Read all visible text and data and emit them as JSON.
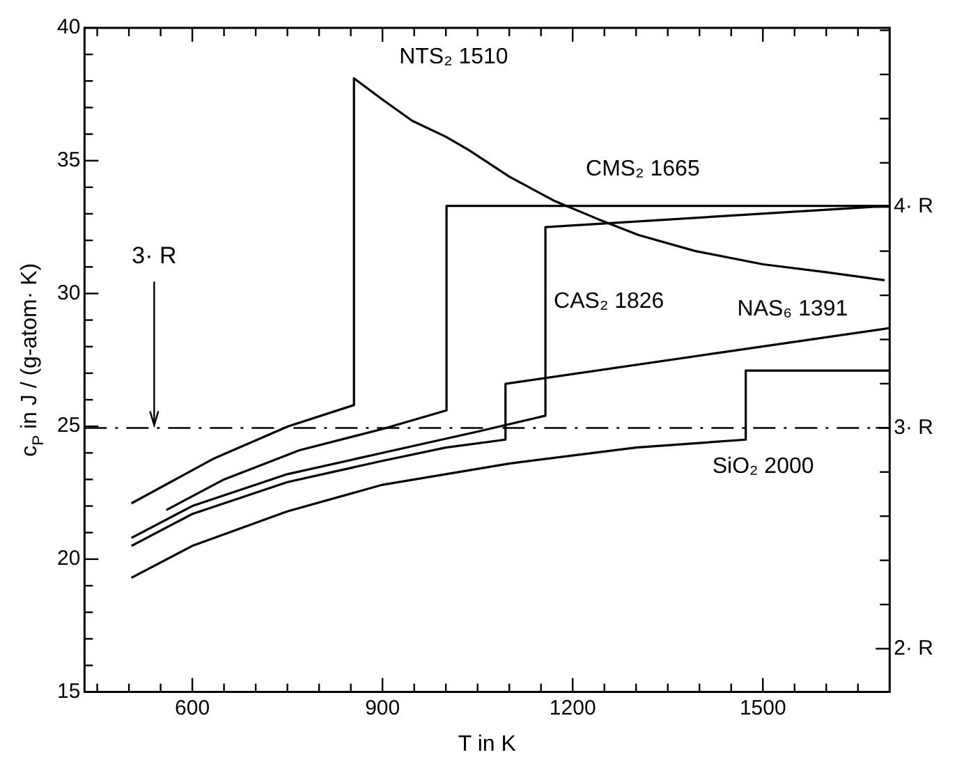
{
  "chart_data": {
    "type": "line",
    "xlabel": "T in K",
    "ylabel": "c$_{P}$ in J / (g-atom· K)",
    "marker": "none",
    "line_style": "solid",
    "grid": false,
    "xlim": [
      430,
      1700
    ],
    "xticks": [
      {
        "value": 450,
        "label": null
      },
      {
        "value": 500,
        "label": null
      },
      {
        "value": 550,
        "label": null
      },
      600,
      {
        "value": 650,
        "label": null
      },
      {
        "value": 700,
        "label": null
      },
      {
        "value": 750,
        "label": null
      },
      {
        "value": 800,
        "label": null
      },
      {
        "value": 850,
        "label": null
      },
      900,
      {
        "value": 950,
        "label": null
      },
      {
        "value": 1000,
        "label": null
      },
      {
        "value": 1050,
        "label": null
      },
      {
        "value": 1100,
        "label": null
      },
      {
        "value": 1150,
        "label": null
      },
      1200,
      {
        "value": 1250,
        "label": null
      },
      {
        "value": 1300,
        "label": null
      },
      {
        "value": 1350,
        "label": null
      },
      {
        "value": 1400,
        "label": null
      },
      {
        "value": 1450,
        "label": null
      },
      1500,
      {
        "value": 1550,
        "label": null
      },
      {
        "value": 1600,
        "label": null
      },
      {
        "value": 1650,
        "label": null
      }
    ],
    "ylim": [
      15,
      40
    ],
    "yticks": [
      15,
      {
        "value": 16,
        "label": null
      },
      {
        "value": 17,
        "label": null
      },
      {
        "value": 18,
        "label": null
      },
      {
        "value": 19,
        "label": null
      },
      20,
      {
        "value": 21,
        "label": null
      },
      {
        "value": 22,
        "label": null
      },
      {
        "value": 23,
        "label": null
      },
      {
        "value": 24,
        "label": null
      },
      25,
      {
        "value": 26,
        "label": null
      },
      {
        "value": 27,
        "label": null
      },
      {
        "value": 28,
        "label": null
      },
      {
        "value": 29,
        "label": null
      },
      30,
      {
        "value": 31,
        "label": null
      },
      {
        "value": 32,
        "label": null
      },
      {
        "value": 33,
        "label": null
      },
      {
        "value": 34,
        "label": null
      },
      35,
      {
        "value": 36,
        "label": null
      },
      {
        "value": 37,
        "label": null
      },
      {
        "value": 38,
        "label": null
      },
      {
        "value": 39,
        "label": null
      },
      40
    ],
    "y2lim": [
      1.804,
      4.811
    ],
    "y2ticks": [
      {
        "value": 2,
        "label": "2· R"
      },
      {
        "value": 2.2,
        "label": null
      },
      {
        "value": 2.4,
        "label": null
      },
      {
        "value": 2.6,
        "label": null
      },
      {
        "value": 2.8,
        "label": null
      },
      {
        "value": 3,
        "label": "3· R"
      },
      {
        "value": 3.2,
        "label": null
      },
      {
        "value": 3.4,
        "label": null
      },
      {
        "value": 3.6,
        "label": null
      },
      {
        "value": 3.8,
        "label": null
      },
      {
        "value": 4,
        "label": "4· R"
      },
      {
        "value": 4.2,
        "label": null
      },
      {
        "value": 4.4,
        "label": null
      },
      {
        "value": 4.6,
        "label": null
      },
      {
        "value": 4.8,
        "label": null
      }
    ],
    "ref_lines": [
      {
        "axis": "y",
        "value": 24.94,
        "label": "3· R",
        "line_style": "dashed",
        "color": "#000000"
      }
    ],
    "series": [
      {
        "name": "NTS₂ 1510",
        "color": "#000000",
        "x": [
          504,
          635,
          751,
          855,
          855,
          900,
          947,
          1000,
          1036,
          1100,
          1170,
          1240,
          1304,
          1393,
          1500,
          1600,
          1692
        ],
        "values": [
          22.1,
          23.8,
          25.0,
          25.8,
          38.1,
          37.3,
          36.5,
          35.9,
          35.4,
          34.4,
          33.5,
          32.8,
          32.2,
          31.6,
          31.1,
          30.8,
          30.5
        ]
      },
      {
        "name": "CMS₂ 1665",
        "color": "#000000",
        "x": [
          559,
          650,
          769,
          900,
          1001,
          1001,
          1700
        ],
        "values": [
          21.85,
          23.0,
          24.1,
          24.9,
          25.6,
          33.3,
          33.3
        ]
      },
      {
        "name": "CAS₂ 1826",
        "color": "#000000",
        "x": [
          504,
          600,
          750,
          900,
          1050,
          1157,
          1157,
          1700
        ],
        "values": [
          20.8,
          22.0,
          23.2,
          24.0,
          24.8,
          25.4,
          32.5,
          33.3
        ]
      },
      {
        "name": "NAS₆ 1391",
        "color": "#000000",
        "x": [
          504,
          600,
          750,
          900,
          1000,
          1094,
          1094,
          1700
        ],
        "values": [
          20.5,
          21.7,
          22.9,
          23.7,
          24.2,
          24.5,
          26.6,
          28.7
        ]
      },
      {
        "name": "SiO₂ 2000",
        "color": "#000000",
        "x": [
          504,
          600,
          750,
          900,
          1100,
          1300,
          1473,
          1473,
          1700
        ],
        "values": [
          19.3,
          20.5,
          21.8,
          22.8,
          23.6,
          24.2,
          24.5,
          27.1,
          27.1
        ]
      }
    ]
  }
}
